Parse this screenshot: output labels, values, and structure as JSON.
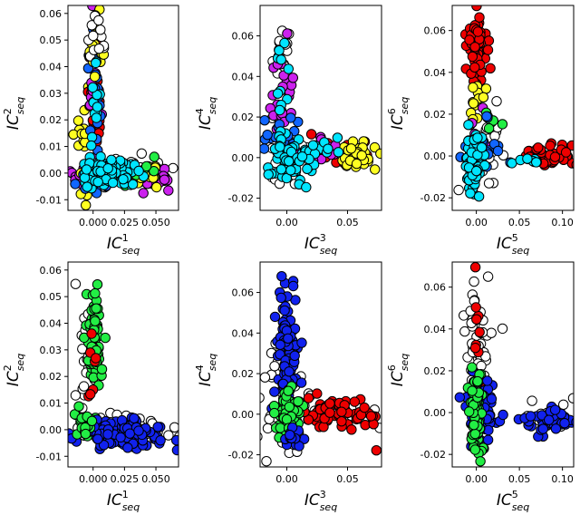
{
  "chart_data": [
    {
      "type": "scatter",
      "xlabel": "IC",
      "xlabel_sup": "1",
      "xlabel_sub": "seq",
      "ylabel": "IC",
      "ylabel_sup": "2",
      "ylabel_sub": "seq",
      "xlim": [
        -0.02,
        0.068
      ],
      "ylim": [
        -0.014,
        0.063
      ],
      "xticks": [
        0.0,
        0.025,
        0.05
      ],
      "xticklabels": [
        "0.000",
        "0.025",
        "0.050"
      ],
      "yticks": [
        -0.01,
        0.0,
        0.01,
        0.02,
        0.03,
        0.04,
        0.05,
        0.06
      ],
      "yticklabels": [
        "-0.01",
        "0.00",
        "0.01",
        "0.02",
        "0.03",
        "0.04",
        "0.05",
        "0.06"
      ],
      "grid": false,
      "marker_edge": "#000000",
      "clusters": [
        {
          "color": "#ffffff",
          "n": 30,
          "cx": 0.03,
          "cy": 0.0,
          "sx": 0.018,
          "sy": 0.003
        },
        {
          "color": "#cc22ee",
          "n": 22,
          "cx": 0.052,
          "cy": -0.002,
          "sx": 0.006,
          "sy": 0.002
        },
        {
          "color": "#cc22ee",
          "n": 15,
          "cx": -0.01,
          "cy": -0.001,
          "sx": 0.006,
          "sy": 0.002
        },
        {
          "color": "#ffff22",
          "n": 18,
          "cx": 0.045,
          "cy": 0.0,
          "sx": 0.01,
          "sy": 0.002
        },
        {
          "color": "#ffff22",
          "n": 22,
          "cx": -0.006,
          "cy": 0.012,
          "sx": 0.004,
          "sy": 0.01
        },
        {
          "color": "#ee0000",
          "n": 24,
          "cx": 0.002,
          "cy": 0.025,
          "sx": 0.003,
          "sy": 0.012
        },
        {
          "color": "#cc22ee",
          "n": 14,
          "cx": 0.001,
          "cy": 0.03,
          "sx": 0.003,
          "sy": 0.012
        },
        {
          "color": "#1166ff",
          "n": 20,
          "cx": 0.001,
          "cy": 0.04,
          "sx": 0.003,
          "sy": 0.01
        },
        {
          "color": "#ffff22",
          "n": 14,
          "cx": 0.002,
          "cy": 0.045,
          "sx": 0.003,
          "sy": 0.007
        },
        {
          "color": "#ffffff",
          "n": 14,
          "cx": 0.003,
          "cy": 0.05,
          "sx": 0.003,
          "sy": 0.006
        },
        {
          "color": "#00e5ff",
          "n": 12,
          "cx": 0.001,
          "cy": 0.025,
          "sx": 0.002,
          "sy": 0.008
        },
        {
          "color": "#22ee44",
          "n": 6,
          "cx": 0.045,
          "cy": 0.001,
          "sx": 0.01,
          "sy": 0.002
        },
        {
          "color": "#1166ff",
          "n": 10,
          "cx": 0.0,
          "cy": -0.005,
          "sx": 0.01,
          "sy": 0.002
        },
        {
          "color": "#00e5ff",
          "n": 90,
          "cx": 0.014,
          "cy": 0.0,
          "sx": 0.012,
          "sy": 0.0028
        }
      ]
    },
    {
      "type": "scatter",
      "xlabel": "IC",
      "xlabel_sup": "3",
      "xlabel_sub": "seq",
      "ylabel": "IC",
      "ylabel_sup": "4",
      "ylabel_sub": "seq",
      "xlim": [
        -0.022,
        0.078
      ],
      "ylim": [
        -0.026,
        0.075
      ],
      "xticks": [
        0.0,
        0.05
      ],
      "xticklabels": [
        "0.00",
        "0.05"
      ],
      "yticks": [
        -0.02,
        0.0,
        0.02,
        0.04,
        0.06
      ],
      "yticklabels": [
        "-0.02",
        "0.00",
        "0.02",
        "0.04",
        "0.06"
      ],
      "grid": false,
      "marker_edge": "#000000",
      "clusters": [
        {
          "color": "#ffffff",
          "n": 30,
          "cx": 0.0,
          "cy": 0.0,
          "sx": 0.01,
          "sy": 0.01
        },
        {
          "color": "#ffffff",
          "n": 16,
          "cx": -0.002,
          "cy": 0.05,
          "sx": 0.004,
          "sy": 0.01
        },
        {
          "color": "#ee0000",
          "n": 14,
          "cx": 0.04,
          "cy": 0.003,
          "sx": 0.015,
          "sy": 0.004
        },
        {
          "color": "#ffff22",
          "n": 40,
          "cx": 0.058,
          "cy": 0.0,
          "sx": 0.008,
          "sy": 0.003
        },
        {
          "color": "#cc22ee",
          "n": 25,
          "cx": -0.004,
          "cy": 0.03,
          "sx": 0.005,
          "sy": 0.015
        },
        {
          "color": "#cc22ee",
          "n": 14,
          "cx": 0.03,
          "cy": 0.004,
          "sx": 0.012,
          "sy": 0.003
        },
        {
          "color": "#1166ff",
          "n": 18,
          "cx": -0.006,
          "cy": 0.01,
          "sx": 0.008,
          "sy": 0.008
        },
        {
          "color": "#00e5ff",
          "n": 10,
          "cx": -0.002,
          "cy": 0.04,
          "sx": 0.003,
          "sy": 0.01
        },
        {
          "color": "#00e5ff",
          "n": 70,
          "cx": 0.003,
          "cy": 0.0,
          "sx": 0.008,
          "sy": 0.007
        },
        {
          "color": "#00e5ff",
          "n": 14,
          "cx": 0.025,
          "cy": 0.004,
          "sx": 0.01,
          "sy": 0.003
        }
      ]
    },
    {
      "type": "scatter",
      "xlabel": "IC",
      "xlabel_sup": "5",
      "xlabel_sub": "seq",
      "ylabel": "IC",
      "ylabel_sup": "6",
      "ylabel_sub": "seq",
      "xlim": [
        -0.028,
        0.113
      ],
      "ylim": [
        -0.026,
        0.072
      ],
      "xticks": [
        0.0,
        0.05,
        0.1
      ],
      "xticklabels": [
        "0.00",
        "0.05",
        "0.10"
      ],
      "yticks": [
        -0.02,
        0.0,
        0.02,
        0.04,
        0.06
      ],
      "yticklabels": [
        "-0.02",
        "0.00",
        "0.02",
        "0.04",
        "0.06"
      ],
      "grid": false,
      "marker_edge": "#000000",
      "clusters": [
        {
          "color": "#ffffff",
          "n": 30,
          "cx": 0.01,
          "cy": 0.0,
          "sx": 0.012,
          "sy": 0.01
        },
        {
          "color": "#ee0000",
          "n": 55,
          "cx": -0.001,
          "cy": 0.05,
          "sx": 0.006,
          "sy": 0.008
        },
        {
          "color": "#ee0000",
          "n": 40,
          "cx": 0.082,
          "cy": 0.0,
          "sx": 0.013,
          "sy": 0.003
        },
        {
          "color": "#ffff22",
          "n": 14,
          "cx": 0.0,
          "cy": 0.025,
          "sx": 0.004,
          "sy": 0.006
        },
        {
          "color": "#cc22ee",
          "n": 10,
          "cx": 0.005,
          "cy": 0.005,
          "sx": 0.01,
          "sy": 0.006
        },
        {
          "color": "#22ee44",
          "n": 6,
          "cx": 0.02,
          "cy": 0.015,
          "sx": 0.005,
          "sy": 0.005
        },
        {
          "color": "#1166ff",
          "n": 24,
          "cx": 0.004,
          "cy": 0.0,
          "sx": 0.012,
          "sy": 0.01
        },
        {
          "color": "#00e5ff",
          "n": 70,
          "cx": -0.003,
          "cy": -0.002,
          "sx": 0.006,
          "sy": 0.008
        },
        {
          "color": "#00e5ff",
          "n": 8,
          "cx": 0.06,
          "cy": -0.003,
          "sx": 0.008,
          "sy": 0.002
        }
      ]
    },
    {
      "type": "scatter",
      "xlabel": "IC",
      "xlabel_sup": "1",
      "xlabel_sub": "seq",
      "ylabel": "IC",
      "ylabel_sup": "2",
      "ylabel_sub": "seq",
      "xlim": [
        -0.02,
        0.068
      ],
      "ylim": [
        -0.014,
        0.063
      ],
      "xticks": [
        0.0,
        0.025,
        0.05
      ],
      "xticklabels": [
        "0.000",
        "0.025",
        "0.050"
      ],
      "yticks": [
        -0.01,
        0.0,
        0.01,
        0.02,
        0.03,
        0.04,
        0.05,
        0.06
      ],
      "yticklabels": [
        "-0.01",
        "0.00",
        "0.01",
        "0.02",
        "0.03",
        "0.04",
        "0.05",
        "0.06"
      ],
      "grid": false,
      "marker_edge": "#000000",
      "clusters": [
        {
          "color": "#ffffff",
          "n": 60,
          "cx": 0.02,
          "cy": 0.0,
          "sx": 0.022,
          "sy": 0.003
        },
        {
          "color": "#ffffff",
          "n": 22,
          "cx": -0.006,
          "cy": 0.025,
          "sx": 0.004,
          "sy": 0.012
        },
        {
          "color": "#22ee44",
          "n": 70,
          "cx": 0.001,
          "cy": 0.035,
          "sx": 0.003,
          "sy": 0.012
        },
        {
          "color": "#ee0000",
          "n": 8,
          "cx": -0.002,
          "cy": 0.02,
          "sx": 0.003,
          "sy": 0.01
        },
        {
          "color": "#ffff22",
          "n": 2,
          "cx": 0.005,
          "cy": 0.003,
          "sx": 0.002,
          "sy": 0.002
        },
        {
          "color": "#1122ee",
          "n": 130,
          "cx": 0.025,
          "cy": -0.001,
          "sx": 0.017,
          "sy": 0.0028
        },
        {
          "color": "#22ee44",
          "n": 18,
          "cx": -0.008,
          "cy": 0.002,
          "sx": 0.004,
          "sy": 0.003
        }
      ]
    },
    {
      "type": "scatter",
      "xlabel": "IC",
      "xlabel_sup": "3",
      "xlabel_sub": "seq",
      "ylabel": "IC",
      "ylabel_sup": "4",
      "ylabel_sub": "seq",
      "xlim": [
        -0.022,
        0.078
      ],
      "ylim": [
        -0.026,
        0.075
      ],
      "xticks": [
        0.0,
        0.05
      ],
      "xticklabels": [
        "0.00",
        "0.05"
      ],
      "yticks": [
        -0.02,
        0.0,
        0.02,
        0.04,
        0.06
      ],
      "yticklabels": [
        "-0.02",
        "0.00",
        "0.02",
        "0.04",
        "0.06"
      ],
      "grid": false,
      "marker_edge": "#000000",
      "clusters": [
        {
          "color": "#ffffff",
          "n": 40,
          "cx": -0.003,
          "cy": 0.005,
          "sx": 0.01,
          "sy": 0.015
        },
        {
          "color": "#ffffff",
          "n": 16,
          "cx": 0.04,
          "cy": 0.002,
          "sx": 0.02,
          "sy": 0.005
        },
        {
          "color": "#1122ee",
          "n": 110,
          "cx": 0.001,
          "cy": 0.03,
          "sx": 0.005,
          "sy": 0.018
        },
        {
          "color": "#ee0000",
          "n": 60,
          "cx": 0.045,
          "cy": 0.0,
          "sx": 0.015,
          "sy": 0.004
        },
        {
          "color": "#22ee44",
          "n": 70,
          "cx": 0.0,
          "cy": 0.0,
          "sx": 0.006,
          "sy": 0.006
        },
        {
          "color": "#1122ee",
          "n": 14,
          "cx": 0.005,
          "cy": -0.012,
          "sx": 0.006,
          "sy": 0.003
        }
      ]
    },
    {
      "type": "scatter",
      "xlabel": "IC",
      "xlabel_sup": "5",
      "xlabel_sub": "seq",
      "ylabel": "IC",
      "ylabel_sup": "6",
      "ylabel_sub": "seq",
      "xlim": [
        -0.028,
        0.113
      ],
      "ylim": [
        -0.026,
        0.072
      ],
      "xticks": [
        0.0,
        0.05,
        0.1
      ],
      "xticklabels": [
        "0.00",
        "0.05",
        "0.10"
      ],
      "yticks": [
        -0.02,
        0.0,
        0.02,
        0.04,
        0.06
      ],
      "yticklabels": [
        "-0.02",
        "0.00",
        "0.02",
        "0.04",
        "0.06"
      ],
      "grid": false,
      "marker_edge": "#000000",
      "clusters": [
        {
          "color": "#ffffff",
          "n": 55,
          "cx": 0.0,
          "cy": 0.03,
          "sx": 0.008,
          "sy": 0.018
        },
        {
          "color": "#ffffff",
          "n": 14,
          "cx": 0.085,
          "cy": 0.0,
          "sx": 0.015,
          "sy": 0.004
        },
        {
          "color": "#ee0000",
          "n": 10,
          "cx": 0.002,
          "cy": 0.035,
          "sx": 0.004,
          "sy": 0.015
        },
        {
          "color": "#1122ee",
          "n": 60,
          "cx": 0.005,
          "cy": 0.0,
          "sx": 0.01,
          "sy": 0.01
        },
        {
          "color": "#1122ee",
          "n": 40,
          "cx": 0.08,
          "cy": -0.003,
          "sx": 0.015,
          "sy": 0.003
        },
        {
          "color": "#22ee44",
          "n": 80,
          "cx": 0.0,
          "cy": 0.0,
          "sx": 0.004,
          "sy": 0.01
        }
      ]
    }
  ]
}
